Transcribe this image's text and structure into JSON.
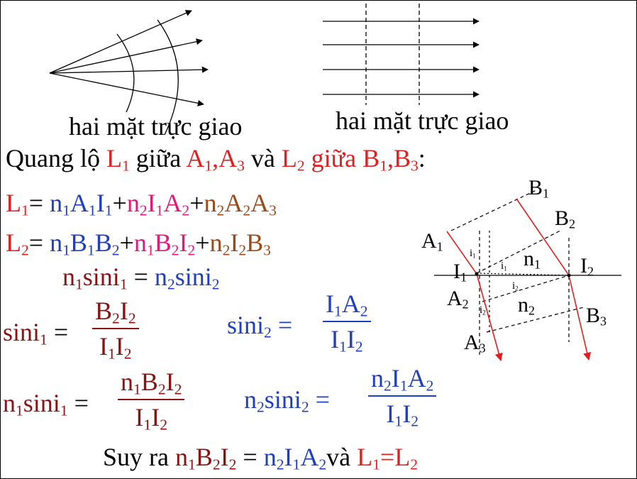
{
  "captions": {
    "left": "hai mặt trực giao",
    "right": "hai mặt trực giao"
  },
  "heading": {
    "quang_lo": "Quang lộ ",
    "L": "L",
    "sub1": "1",
    "giua": " giữa ",
    "A": "A",
    "comma": ",",
    "sub3": "3",
    "va": " và ",
    "sub2": "2",
    "B": "B",
    "colon": ":"
  },
  "eq_L1": {
    "lhs": "L",
    "lsub": "1",
    "eq": "= ",
    "t1": "n",
    "t1s": "1",
    "t1b": "A",
    "t1bs": "1",
    "t1c": "I",
    "t1cs": "1",
    "plus": "+",
    "t2": "n",
    "t2s": "2",
    "t2b": "I",
    "t2bs": "1",
    "t2c": "A",
    "t2cs": "2",
    "t3": "n",
    "t3s": "2",
    "t3b": "A",
    "t3bs": "2",
    "t3c": "A",
    "t3cs": "3"
  },
  "eq_L2": {
    "lhs": "L",
    "lsub": "2",
    "eq": "= ",
    "t1": "n",
    "t1s": "1",
    "t1b": "B",
    "t1bs": "1",
    "t1c": "B",
    "t1cs": "2",
    "plus": "+",
    "t2": "n",
    "t2s": "1",
    "t2b": "B",
    "t2bs": "2",
    "t2c": "I",
    "t2cs": "2",
    "t3": "n",
    "t3s": "2",
    "t3b": "I",
    "t3bs": "2",
    "t3c": "B",
    "t3cs": "3"
  },
  "snell": {
    "n": "n",
    "s1": "1",
    "sini": "sini",
    "eq": " = ",
    "s2": "2"
  },
  "fractions": {
    "f1_lhs": "sini",
    "f1_lhs_sub": "1",
    "f1_eq": "=",
    "f1_num": "B",
    "f1_num_s1": "2",
    "f1_num_b": "I",
    "f1_num_s2": "2",
    "f1_den": "I",
    "f1_den_s1": "1",
    "f1_den_b": "I",
    "f1_den_s2": "2",
    "f2_lhs": "sini",
    "f2_lhs_sub": "2",
    "f2_eq": "=",
    "f2_num": "I",
    "f2_num_s1": "1",
    "f2_num_b": "A",
    "f2_num_s2": "2",
    "f2_den": "I",
    "f2_den_s1": "1",
    "f2_den_b": "I",
    "f2_den_s2": "2",
    "f3_lhs_n": "n",
    "f3_lhs_ns": "1",
    "f3_lhs": "sini",
    "f3_lhs_sub": "1",
    "f3_eq": "=",
    "f3_num_n": "n",
    "f3_num_ns": "1",
    "f3_num": "B",
    "f3_num_s1": "2",
    "f3_num_b": "I",
    "f3_num_s2": "2",
    "f3_den": "I",
    "f3_den_s1": "1",
    "f3_den_b": "I",
    "f3_den_s2": "2",
    "f4_lhs_n": "n",
    "f4_lhs_ns": "2",
    "f4_lhs": "sini",
    "f4_lhs_sub": "2",
    "f4_eq": "=",
    "f4_num_n": "n",
    "f4_num_ns": "2",
    "f4_num": "I",
    "f4_num_s1": "1",
    "f4_num_b": "A",
    "f4_num_s2": "2",
    "f4_den": "I",
    "f4_den_s1": "1",
    "f4_den_b": "I",
    "f4_den_s2": "2"
  },
  "conclusion": {
    "suy_ra": "Suy ra ",
    "n": "n",
    "s1": "1",
    "B": "B",
    "s2": "2",
    "I": "I",
    "eq": " = ",
    "n2": "n",
    "A": "A",
    "va": "và ",
    "L": "L",
    "Leq": "=L"
  },
  "diagram_labels": {
    "B1": "B",
    "B1s": "1",
    "B2": "B",
    "B2s": "2",
    "B3": "B",
    "B3s": "3",
    "A1": "A",
    "A1s": "1",
    "A2": "A",
    "A2s": "2",
    "A3": "A",
    "A3s": "3",
    "I1": "I",
    "I1s": "1",
    "I2": "I",
    "I2s": "2",
    "n1": "n",
    "n1s": "1",
    "n2": "n",
    "n2s": "2",
    "i": "i",
    "i1": "1",
    "i2": "2"
  },
  "colors": {
    "red": "#e31e1e",
    "blue": "#1f3fbf",
    "pink": "#e3197a",
    "brown": "#9b4a1b",
    "maroon": "#8a1212"
  }
}
